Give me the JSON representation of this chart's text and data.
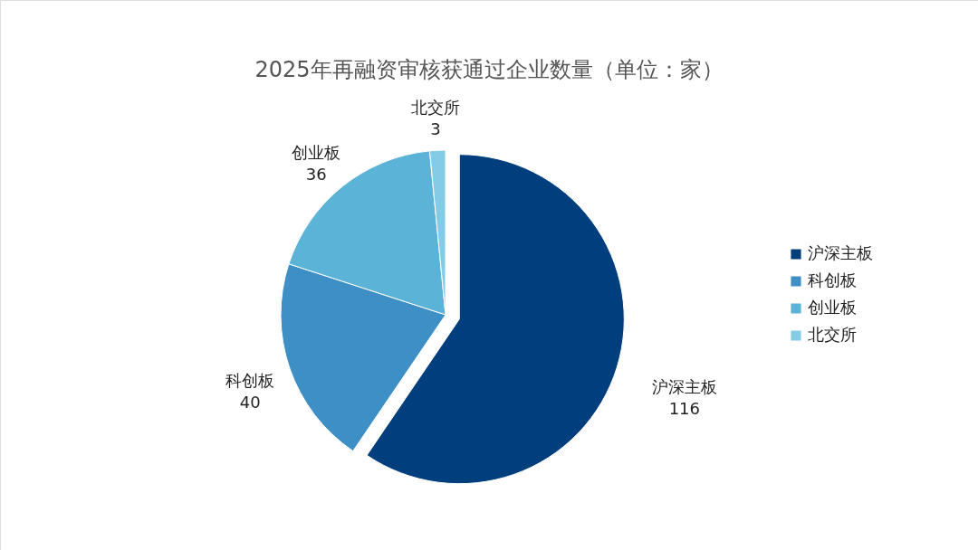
{
  "chart_data": {
    "type": "pie",
    "title": "2025年再融资审核获通过企业数量（单位：家）",
    "categories": [
      "沪深主板",
      "科创板",
      "创业板",
      "北交所"
    ],
    "values": [
      116,
      40,
      36,
      3
    ],
    "colors": [
      "#003e7e",
      "#3f8fc7",
      "#5cb3d8",
      "#84cbe6"
    ],
    "data_labels": true,
    "legend": "right"
  }
}
